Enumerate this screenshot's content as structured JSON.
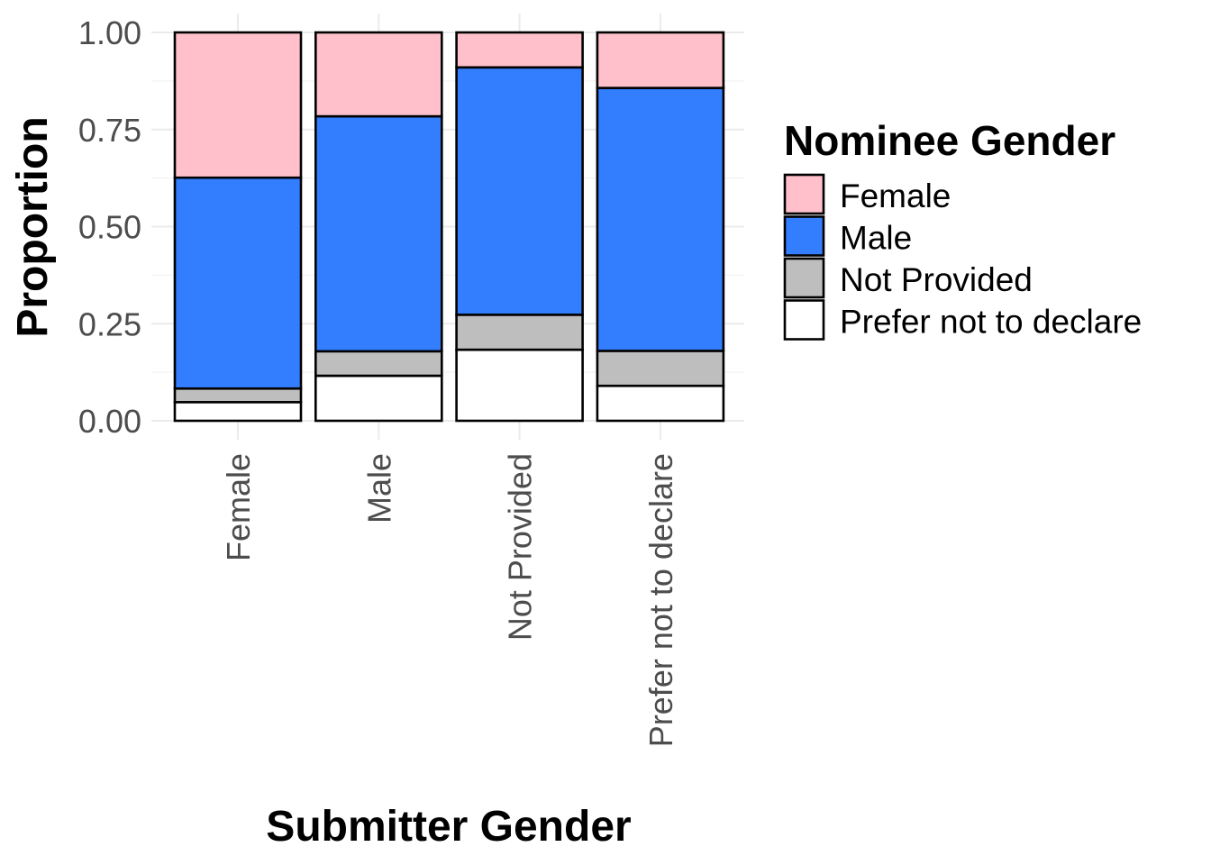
{
  "chart_data": {
    "type": "bar",
    "stacked": true,
    "xlabel": "Submitter Gender",
    "ylabel": "Proportion",
    "categories": [
      "Female",
      "Male",
      "Not Provided",
      "Prefer not to declare"
    ],
    "ylim": [
      0,
      1
    ],
    "yticks": [
      "0.00",
      "0.25",
      "0.50",
      "0.75",
      "1.00"
    ],
    "ytick_values": [
      0,
      0.25,
      0.5,
      0.75,
      1
    ],
    "grid": true,
    "legend": {
      "title": "Nominee Gender",
      "placement": "right"
    },
    "series": [
      {
        "name": "Prefer not to declare",
        "color": "#ffffff",
        "values": [
          0.048,
          0.116,
          0.183,
          0.09
        ]
      },
      {
        "name": "Not Provided",
        "color": "#bebebe",
        "values": [
          0.035,
          0.063,
          0.09,
          0.09
        ]
      },
      {
        "name": "Male",
        "color": "#337dff",
        "values": [
          0.543,
          0.605,
          0.637,
          0.677
        ]
      },
      {
        "name": "Female",
        "color": "#ffc0cb",
        "values": [
          0.374,
          0.216,
          0.09,
          0.143
        ]
      }
    ],
    "legend_order": [
      "Female",
      "Male",
      "Not Provided",
      "Prefer not to declare"
    ]
  }
}
